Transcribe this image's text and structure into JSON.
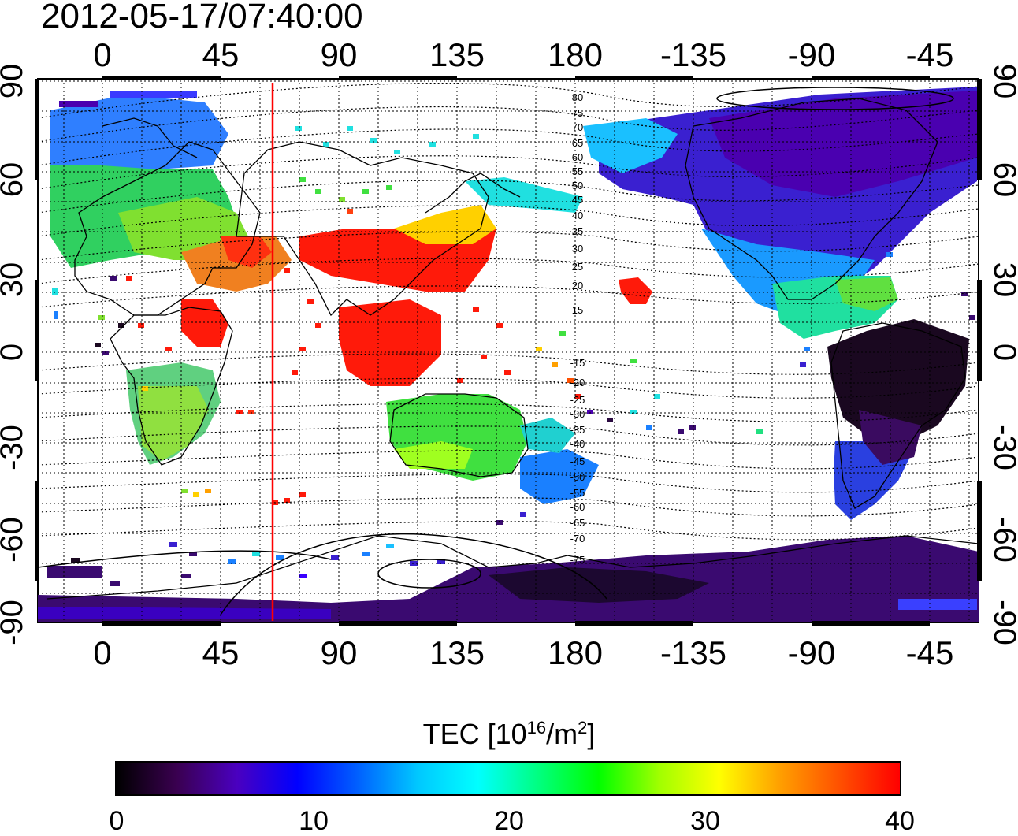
{
  "title": "2012-05-17/07:40:00",
  "map": {
    "lon_ticks": [
      "0",
      "45",
      "90",
      "135",
      "180",
      "-135",
      "-90",
      "-45"
    ],
    "lat_ticks": [
      "90",
      "60",
      "30",
      "0",
      "-30",
      "-60",
      "-90"
    ],
    "terminator_longitude": "66",
    "contour_labels_north": [
      "80",
      "75",
      "70",
      "65",
      "60",
      "55",
      "50",
      "45",
      "40",
      "35",
      "30",
      "25",
      "20",
      "15"
    ],
    "contour_labels_south": [
      "15",
      "20",
      "25",
      "30",
      "35",
      "40",
      "45",
      "50",
      "55",
      "60",
      "65",
      "70",
      "75"
    ]
  },
  "colorbar": {
    "label_prefix": "TEC  [10",
    "label_exp": "16",
    "label_mid": "/m",
    "label_exp2": "2",
    "label_suffix": "]",
    "ticks": [
      "0",
      "10",
      "20",
      "30",
      "40"
    ],
    "colors": [
      "#000000",
      "#3a0050",
      "#4a00c0",
      "#0000ff",
      "#0060ff",
      "#00c8ff",
      "#00ffff",
      "#00ff80",
      "#00ff00",
      "#a0ff00",
      "#ffff00",
      "#ffa000",
      "#ff5000",
      "#ff0000"
    ]
  }
}
